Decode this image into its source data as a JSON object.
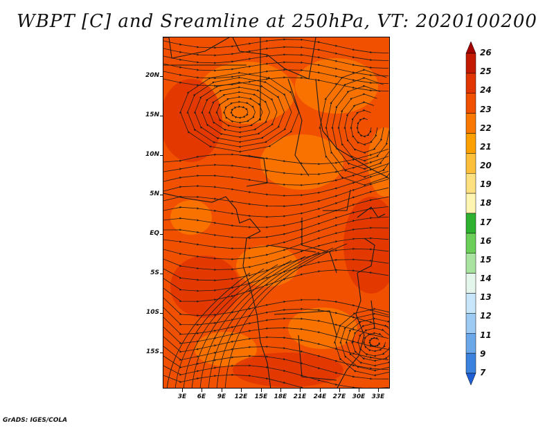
{
  "title": "WBPT [C] and Sreamline at 250hPa, VT: 2020100200",
  "credit": "GrADS: IGES/COLA",
  "latitude_labels": [
    "20N",
    "15N",
    "10N",
    "5N",
    "EQ",
    "5S",
    "10S",
    "15S"
  ],
  "longitude_labels": [
    "3E",
    "6E",
    "9E",
    "12E",
    "15E",
    "18E",
    "21E",
    "24E",
    "27E",
    "30E",
    "33E"
  ],
  "colorbar": {
    "labels": [
      "26",
      "25",
      "24",
      "23",
      "22",
      "21",
      "20",
      "19",
      "18",
      "17",
      "16",
      "15",
      "14",
      "13",
      "12",
      "11",
      "9",
      "7"
    ],
    "colors": [
      "#a50000",
      "#c41b00",
      "#e03500",
      "#f05000",
      "#fa7800",
      "#fca000",
      "#fdbf3a",
      "#fde080",
      "#fff4b0",
      "#30b030",
      "#6ccf5a",
      "#a8e4a0",
      "#e4f6ec",
      "#c8e6fa",
      "#9ccaf2",
      "#6aa8ea",
      "#3c82de",
      "#1e5fd4"
    ]
  },
  "field_colors": {
    "dominant": "#f05000",
    "darker": "#e03500",
    "lighter": "#fa7800",
    "coast": "#1a1a1a"
  }
}
